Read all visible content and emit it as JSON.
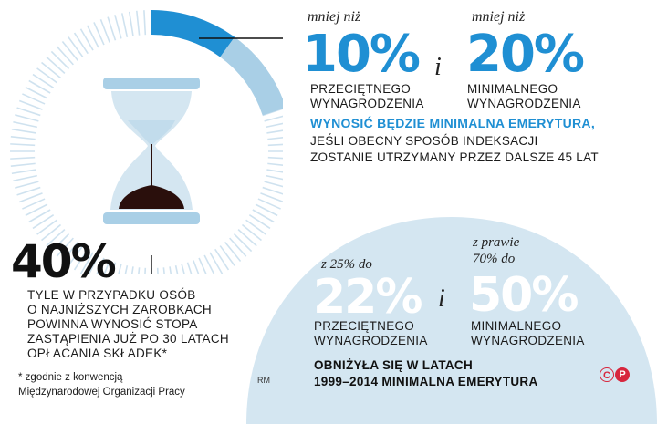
{
  "colors": {
    "accent_blue": "#1f8fd3",
    "light_blue": "#a9cfe6",
    "pale_blue": "#d4e6f1",
    "badge_red": "#d7263d"
  },
  "top": {
    "left": {
      "prefix": "mniej niż",
      "value": "10%",
      "label_line1": "PRZECIĘTNEGO",
      "label_line2": "WYNAGRODZENIA"
    },
    "conj": "i",
    "right": {
      "prefix": "mniej niż",
      "value": "20%",
      "label_line1": "MINIMALNEGO",
      "label_line2": "WYNAGRODZENIA"
    },
    "headline": "WYNOSIĆ BĘDZIE MINIMALNA EMERYTURA,",
    "sub_line1": "JEŚLI OBECNY SPOSÓB INDEKSACJI",
    "sub_line2": "ZOSTANIE UTRZYMANY PRZEZ DALSZE 45 LAT"
  },
  "left_stat": {
    "value": "40%",
    "line1": "TYLE W PRZYPADKU OSÓB",
    "line2": "O NAJNIŻSZYCH ZAROBKACH",
    "line3": "POWINNA WYNOSIĆ STOPA",
    "line4": "ZASTĄPIENIA JUŻ PO 30 LATACH",
    "line5": "OPŁACANIA SKŁADEK*",
    "footnote_line1": "* zgodnie z konwencją",
    "footnote_line2": "Międzynarodowej Organizacji Pracy"
  },
  "bottom": {
    "left": {
      "prefix": "z 25% do",
      "value": "22%",
      "label_line1": "PRZECIĘTNEGO",
      "label_line2": "WYNAGRODZENIA"
    },
    "conj": "i",
    "right": {
      "prefix_line1": "z prawie",
      "prefix_line2": "70% do",
      "value": "50%",
      "label_line1": "MINIMALNEGO",
      "label_line2": "WYNAGRODZENIA"
    },
    "headline_line1": "OBNIŻYŁA SIĘ W LATACH",
    "headline_line2": "1999–2014 MINIMALNA EMERYTURA"
  },
  "credit": "RM",
  "badges": [
    "C",
    "P"
  ],
  "icons": {
    "illustration": "hourglass-icon"
  }
}
